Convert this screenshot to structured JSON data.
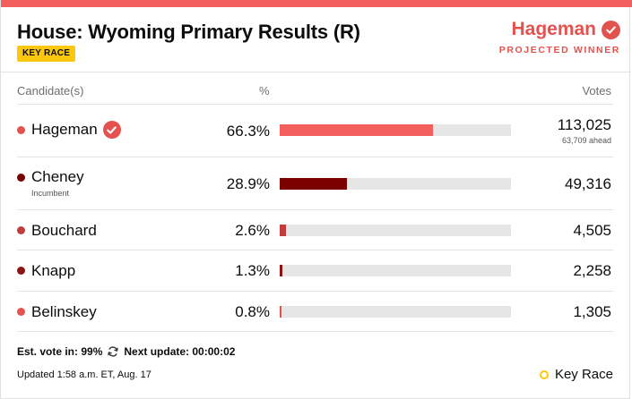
{
  "header": {
    "title": "House: Wyoming Primary Results (R)",
    "badge": "KEY RACE",
    "winner_name": "Hageman",
    "winner_label": "PROJECTED WINNER"
  },
  "columns": {
    "candidate": "Candidate(s)",
    "percent": "%",
    "votes": "Votes"
  },
  "candidates": [
    {
      "name": "Hageman",
      "percent": "66.3%",
      "share": 66.3,
      "votes": "113,025",
      "ahead": "63,709 ahead",
      "winner": true,
      "color": "#f25f5c",
      "dot_color": "#e3524f"
    },
    {
      "name": "Cheney",
      "sub": "Incumbent",
      "percent": "28.9%",
      "share": 28.9,
      "votes": "49,316",
      "color": "#7a0000",
      "dot_color": "#7a0000"
    },
    {
      "name": "Bouchard",
      "percent": "2.6%",
      "share": 2.6,
      "votes": "4,505",
      "color": "#c13c3c",
      "dot_color": "#c13c3c"
    },
    {
      "name": "Knapp",
      "percent": "1.3%",
      "share": 1.3,
      "votes": "2,258",
      "color": "#8e1414",
      "dot_color": "#8e1414"
    },
    {
      "name": "Belinskey",
      "percent": "0.8%",
      "share": 0.8,
      "votes": "1,305",
      "color": "#e3524f",
      "dot_color": "#e3524f"
    }
  ],
  "footer": {
    "est_vote": "Est. vote in: 99%",
    "next_update": "Next update: 00:00:02",
    "updated": "Updated 1:58 a.m. ET, Aug. 17",
    "legend": "Key Race"
  }
}
